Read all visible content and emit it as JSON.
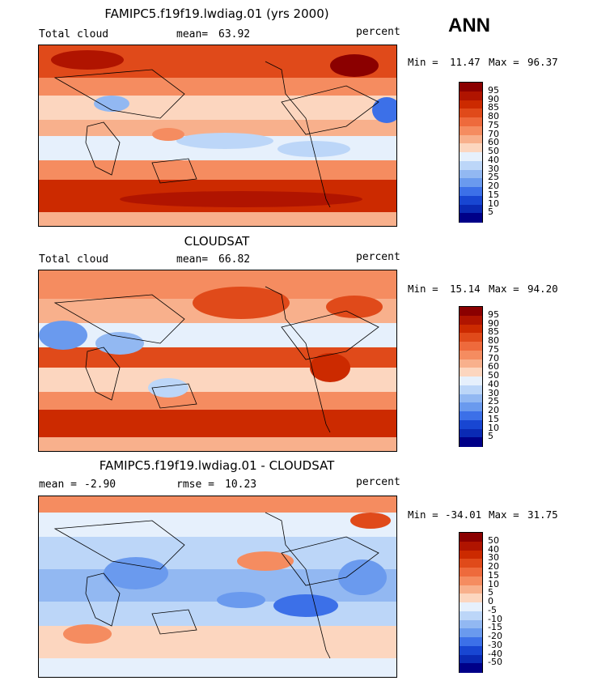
{
  "season": "ANN",
  "panels": [
    {
      "title": "FAMIPC5.f19f19.lwdiag.01 (yrs 2000)",
      "left_label": "Total cloud",
      "mean_label": "mean=",
      "mean_value": "63.92",
      "units": "percent",
      "min_label": "Min =",
      "min_value": "11.47",
      "max_label": "Max =",
      "max_value": "96.37",
      "colorbar": "abs"
    },
    {
      "title": "CLOUDSAT",
      "left_label": "Total cloud",
      "mean_label": "mean=",
      "mean_value": "66.82",
      "units": "percent",
      "min_label": "Min =",
      "min_value": "15.14",
      "max_label": "Max =",
      "max_value": "94.20",
      "colorbar": "abs"
    },
    {
      "title": "FAMIPC5.f19f19.lwdiag.01 - CLOUDSAT",
      "left_label": "mean =",
      "left_value": "-2.90",
      "mean_label": "rmse =",
      "mean_value": "10.23",
      "units": "percent",
      "min_label": "Min =",
      "min_value": "-34.01",
      "max_label": "Max =",
      "max_value": "31.75",
      "colorbar": "diff"
    }
  ],
  "colorbars": {
    "abs": {
      "labels": [
        "95",
        "90",
        "85",
        "80",
        "75",
        "70",
        "60",
        "50",
        "40",
        "30",
        "25",
        "20",
        "15",
        "10",
        "5"
      ],
      "colors": [
        "#8b0000",
        "#b01400",
        "#cc2a00",
        "#e04a1a",
        "#ee6a3c",
        "#f58c60",
        "#f8b08c",
        "#fcd6bf",
        "#e6f0fc",
        "#bcd6f8",
        "#92b8f2",
        "#6a9aee",
        "#3c70e8",
        "#1846d2",
        "#0a2ab4",
        "#000088"
      ]
    },
    "diff": {
      "labels": [
        "50",
        "40",
        "30",
        "20",
        "15",
        "10",
        "5",
        "0",
        "-5",
        "-10",
        "-15",
        "-20",
        "-30",
        "-40",
        "-50"
      ],
      "colors": [
        "#8b0000",
        "#b01400",
        "#cc2a00",
        "#e04a1a",
        "#ee6a3c",
        "#f58c60",
        "#f8b08c",
        "#fcd6bf",
        "#e6f0fc",
        "#bcd6f8",
        "#92b8f2",
        "#6a9aee",
        "#3c70e8",
        "#1846d2",
        "#0a2ab4",
        "#000088"
      ]
    }
  },
  "chart_data": [
    {
      "type": "heatmap",
      "title": "FAMIPC5.f19f19.lwdiag.01 (yrs 2000)",
      "variable": "Total cloud",
      "units": "percent",
      "mean": 63.92,
      "min": 11.47,
      "max": 96.37,
      "contour_levels": [
        5,
        10,
        15,
        20,
        25,
        30,
        40,
        50,
        60,
        70,
        75,
        80,
        85,
        90,
        95
      ]
    },
    {
      "type": "heatmap",
      "title": "CLOUDSAT",
      "variable": "Total cloud",
      "units": "percent",
      "mean": 66.82,
      "min": 15.14,
      "max": 94.2,
      "contour_levels": [
        5,
        10,
        15,
        20,
        25,
        30,
        40,
        50,
        60,
        70,
        75,
        80,
        85,
        90,
        95
      ]
    },
    {
      "type": "heatmap",
      "title": "FAMIPC5.f19f19.lwdiag.01 - CLOUDSAT",
      "units": "percent",
      "mean": -2.9,
      "rmse": 10.23,
      "min": -34.01,
      "max": 31.75,
      "contour_levels": [
        -50,
        -40,
        -30,
        -20,
        -15,
        -10,
        -5,
        0,
        5,
        10,
        15,
        20,
        30,
        40,
        50
      ]
    }
  ]
}
